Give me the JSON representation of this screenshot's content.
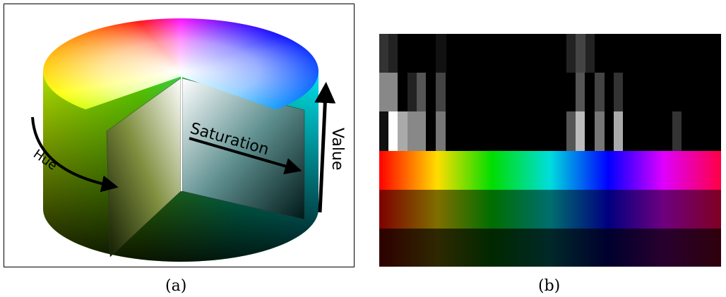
{
  "panel_a": {
    "labels": {
      "hue": "Hue",
      "saturation": "Saturation",
      "value": "Value"
    },
    "caption": "(a)"
  },
  "panel_b": {
    "caption": "(b)"
  }
}
